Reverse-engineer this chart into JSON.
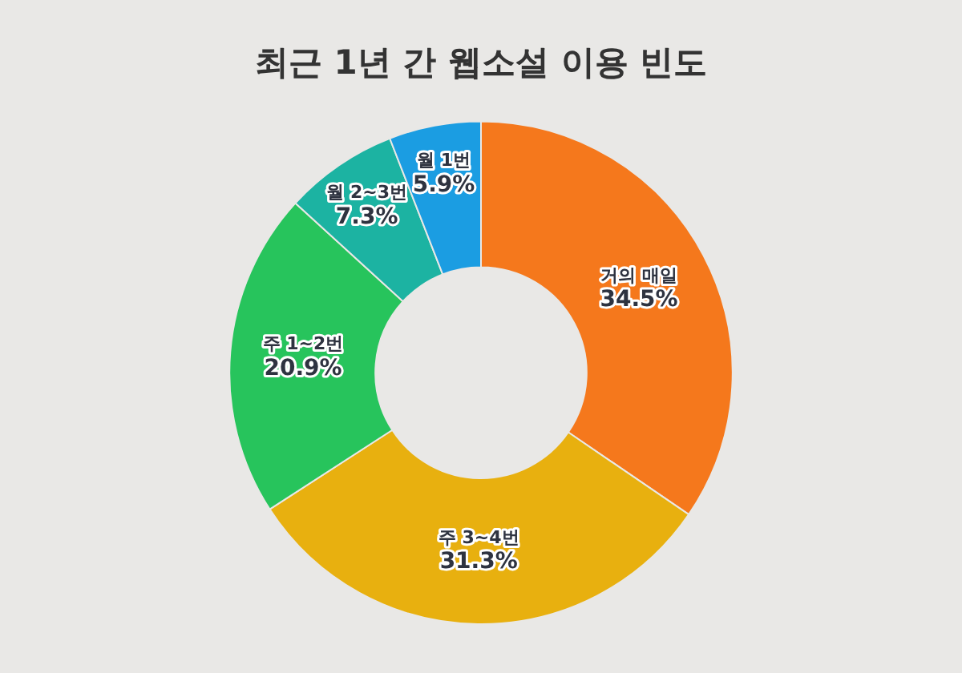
{
  "chart_data": {
    "type": "donut",
    "title": "최근 1년 간 웹소설 이용 빈도",
    "categories": [
      "거의 매일",
      "주 3~4번",
      "주 1~2번",
      "월 2~3번",
      "월 1번"
    ],
    "values": [
      34.5,
      31.3,
      20.9,
      7.3,
      5.9
    ],
    "value_labels": [
      "34.5%",
      "31.3%",
      "20.9%",
      "7.3%",
      "5.9%"
    ],
    "colors": [
      "#f5781c",
      "#e8b00f",
      "#27c45c",
      "#1cb3a2",
      "#1b9de2"
    ],
    "legend": false
  }
}
